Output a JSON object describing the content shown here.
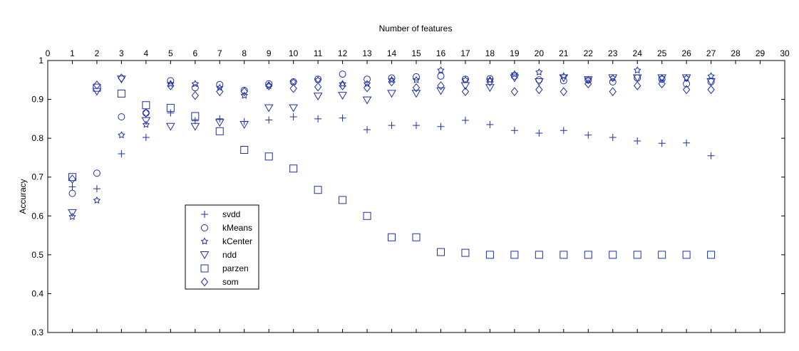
{
  "chart_data": {
    "type": "scatter",
    "title": "",
    "xlabel": "Number of features",
    "ylabel": "Accuracy",
    "xlim": [
      0,
      30
    ],
    "ylim": [
      0.3,
      1
    ],
    "x_axis_position": "top",
    "grid": false,
    "legend_position": "lower-left",
    "marker_color": "#1f2fa8",
    "x_ticks": [
      0,
      1,
      2,
      3,
      4,
      5,
      6,
      7,
      8,
      9,
      10,
      11,
      12,
      13,
      14,
      15,
      16,
      17,
      18,
      19,
      20,
      21,
      22,
      23,
      24,
      25,
      26,
      27,
      28,
      29,
      30
    ],
    "y_ticks": [
      0.3,
      0.4,
      0.5,
      0.6,
      0.7,
      0.8,
      0.9,
      1
    ],
    "x_tick_labels": [
      "0",
      "1",
      "2",
      "3",
      "4",
      "5",
      "6",
      "7",
      "8",
      "9",
      "10",
      "11",
      "12",
      "13",
      "14",
      "15",
      "16",
      "17",
      "18",
      "19",
      "20",
      "21",
      "22",
      "23",
      "24",
      "25",
      "26",
      "27",
      "28",
      "29",
      "30"
    ],
    "y_tick_labels": [
      "0.3",
      "0.4",
      "0.5",
      "0.6",
      "0.7",
      "0.8",
      "0.9",
      "1"
    ],
    "x": [
      1,
      2,
      3,
      4,
      5,
      6,
      7,
      8,
      9,
      10,
      11,
      12,
      13,
      14,
      15,
      16,
      17,
      18,
      19,
      20,
      21,
      22,
      23,
      24,
      25,
      26,
      27
    ],
    "series": [
      {
        "name": "svdd",
        "marker": "plus",
        "values": [
          0.675,
          0.67,
          0.76,
          0.802,
          0.865,
          0.845,
          0.85,
          0.843,
          0.847,
          0.855,
          0.85,
          0.852,
          0.822,
          0.833,
          0.833,
          0.83,
          0.846,
          0.835,
          0.82,
          0.813,
          0.82,
          0.808,
          0.802,
          0.793,
          0.787,
          0.788,
          0.755
        ]
      },
      {
        "name": "kMeans",
        "marker": "circle",
        "values": [
          0.658,
          0.71,
          0.855,
          0.865,
          0.948,
          0.93,
          0.938,
          0.923,
          0.94,
          0.945,
          0.952,
          0.965,
          0.952,
          0.955,
          0.958,
          0.96,
          0.952,
          0.953,
          0.96,
          0.95,
          0.948,
          0.95,
          0.945,
          0.955,
          0.952,
          0.94,
          0.945
        ]
      },
      {
        "name": "kCenter",
        "marker": "star",
        "values": [
          0.598,
          0.64,
          0.808,
          0.835,
          0.94,
          0.94,
          0.93,
          0.91,
          0.935,
          0.945,
          0.95,
          0.94,
          0.94,
          0.95,
          0.95,
          0.975,
          0.95,
          0.95,
          0.965,
          0.97,
          0.96,
          0.95,
          0.955,
          0.975,
          0.955,
          0.955,
          0.96
        ]
      },
      {
        "name": "ndd",
        "marker": "triangle-down",
        "values": [
          0.608,
          0.92,
          0.952,
          0.845,
          0.83,
          0.83,
          0.84,
          0.835,
          0.878,
          0.878,
          0.908,
          0.91,
          0.898,
          0.915,
          0.915,
          0.922,
          0.935,
          0.93,
          0.955,
          0.945,
          0.955,
          0.95,
          0.955,
          0.955,
          0.955,
          0.955,
          0.945
        ]
      },
      {
        "name": "parzen",
        "marker": "square",
        "values": [
          0.7,
          0.93,
          0.915,
          0.885,
          0.878,
          0.857,
          0.818,
          0.77,
          0.753,
          0.722,
          0.667,
          0.641,
          0.6,
          0.545,
          0.545,
          0.507,
          0.505,
          0.5,
          0.5,
          0.5,
          0.5,
          0.5,
          0.5,
          0.5,
          0.5,
          0.5,
          0.5
        ]
      },
      {
        "name": "som",
        "marker": "diamond",
        "values": [
          0.695,
          0.937,
          0.955,
          0.865,
          0.935,
          0.91,
          0.92,
          0.92,
          0.935,
          0.928,
          0.932,
          0.935,
          0.93,
          0.945,
          0.93,
          0.935,
          0.92,
          0.945,
          0.92,
          0.925,
          0.92,
          0.94,
          0.92,
          0.935,
          0.94,
          0.925,
          0.925
        ]
      }
    ]
  }
}
